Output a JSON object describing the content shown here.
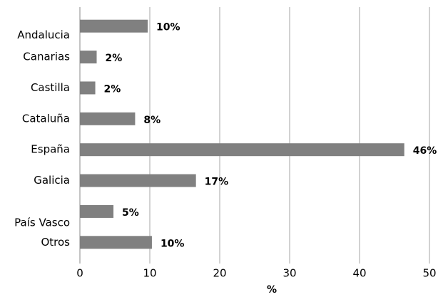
{
  "chart_data": {
    "type": "hbar",
    "categories": [
      "Andalucia",
      "Canarias",
      "Castilla",
      "Cataluña",
      "España",
      "Galicia",
      "País Vasco",
      "Otros"
    ],
    "values": [
      9.7,
      2.4,
      2.2,
      7.9,
      46.4,
      16.6,
      4.8,
      10.3
    ],
    "value_labels": [
      "10%",
      "2%",
      "2%",
      "8%",
      "46%",
      "17%",
      "5%",
      "10%"
    ],
    "color": "#808080",
    "xlabel": "%",
    "xlim": [
      0,
      50
    ],
    "xticks": [
      0,
      10,
      20,
      30,
      40,
      50
    ],
    "grid": true
  }
}
